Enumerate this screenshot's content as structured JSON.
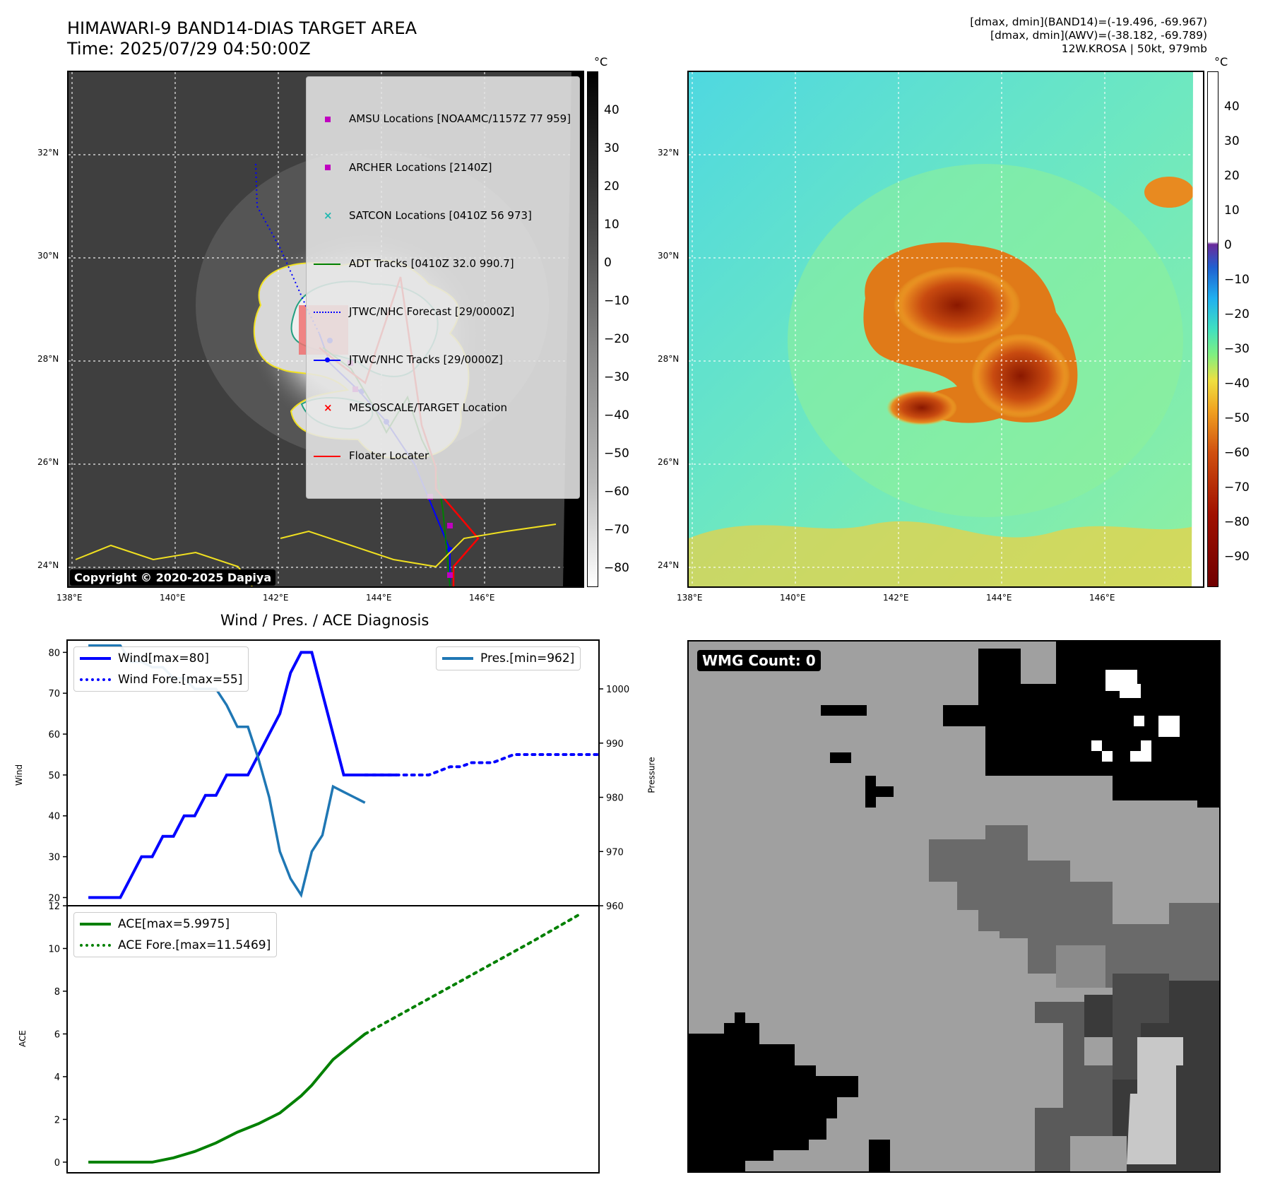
{
  "header": {
    "title_line1": "HIMAWARI-9 BAND14-DIAS TARGET AREA",
    "title_line2": "Time: 2025/07/29 04:50:00Z",
    "stats_line1": "[dmax, dmin](BAND14)=(-19.496, -69.967)",
    "stats_line2": "[dmax, dmin](AWV)=(-38.182, -69.789)",
    "stats_line3": "12W.KROSA | 50kt, 979mb"
  },
  "map": {
    "lat_labels": [
      "32°N",
      "30°N",
      "28°N",
      "26°N",
      "24°N"
    ],
    "lon_labels": [
      "138°E",
      "140°E",
      "142°E",
      "144°E",
      "146°E"
    ],
    "copyright": "Copyright © 2020-2025 Dapiya",
    "legend": [
      {
        "label": "AMSU Locations [NOAAMC/1157Z 77 959]",
        "symbol": "square",
        "color": "#c000c0"
      },
      {
        "label": "ARCHER Locations [2140Z]",
        "symbol": "square",
        "color": "#c000c0"
      },
      {
        "label": "SATCON Locations [0410Z 56 973]",
        "symbol": "x",
        "color": "#20b8b0"
      },
      {
        "label": "ADT Tracks [0410Z 32.0 990.7]",
        "symbol": "line",
        "color": "#008000"
      },
      {
        "label": "JTWC/NHC Forecast [29/0000Z]",
        "symbol": "dotted",
        "color": "#0000ff"
      },
      {
        "label": "JTWC/NHC Tracks [29/0000Z]",
        "symbol": "line-dot",
        "color": "#0000ff"
      },
      {
        "label": "MESOSCALE/TARGET Location",
        "symbol": "x",
        "color": "#ff0000"
      },
      {
        "label": "Floater Locater",
        "symbol": "line",
        "color": "#ff0000"
      }
    ]
  },
  "colorbar_gray": {
    "unit": "°C",
    "ticks": [
      "40",
      "30",
      "20",
      "10",
      "0",
      "−10",
      "−20",
      "−30",
      "−40",
      "−50",
      "−60",
      "−70",
      "−80"
    ]
  },
  "colorbar_awv": {
    "unit": "°C",
    "ticks": [
      "40",
      "30",
      "20",
      "10",
      "0",
      "−10",
      "−20",
      "−30",
      "−40",
      "−50",
      "−60",
      "−70",
      "−80",
      "−90"
    ]
  },
  "diagnosis": {
    "title": "Wind / Pres. / ACE Diagnosis",
    "wind_ylabel": "Wind",
    "pres_ylabel": "Pressure",
    "ace_ylabel": "ACE",
    "wind_legend": [
      "Wind[max=80]",
      "Wind Fore.[max=55]"
    ],
    "pres_legend": "Pres.[min=962]",
    "ace_legend": [
      "ACE[max=5.9975]",
      "ACE Fore.[max=11.5469]"
    ]
  },
  "wmg": {
    "label": "WMG Count: 0"
  },
  "chart_data": [
    {
      "type": "line",
      "title": "Wind / Pres. / ACE Diagnosis",
      "ylabel": "Wind",
      "ylim": [
        18,
        83
      ],
      "yticks": [
        20,
        30,
        40,
        50,
        60,
        70,
        80
      ],
      "series": [
        {
          "name": "Wind[max=80]",
          "color": "#0000ff",
          "style": "solid",
          "x": [
            0,
            1,
            2,
            3,
            4,
            5,
            6,
            7,
            8,
            9,
            10,
            11,
            12,
            13,
            14,
            15,
            16,
            17,
            18,
            19,
            20,
            21,
            22,
            23,
            24,
            25,
            26,
            27,
            28,
            29
          ],
          "values": [
            20,
            20,
            20,
            20,
            25,
            30,
            30,
            35,
            35,
            40,
            40,
            45,
            45,
            50,
            50,
            50,
            55,
            60,
            65,
            75,
            80,
            80,
            70,
            60,
            50,
            50,
            50,
            50,
            50,
            50
          ]
        },
        {
          "name": "Wind Fore.[max=55]",
          "color": "#0000ff",
          "style": "dotted",
          "x": [
            26,
            28,
            30,
            32,
            33,
            34,
            35,
            36,
            38,
            40,
            44,
            48
          ],
          "values": [
            50,
            50,
            50,
            50,
            51,
            52,
            52,
            53,
            53,
            55,
            55,
            55
          ]
        }
      ],
      "xlim": [
        -2,
        48
      ]
    },
    {
      "type": "line",
      "ylabel": "Pressure",
      "ylim": [
        960,
        1009
      ],
      "yticks": [
        960,
        970,
        980,
        990,
        1000
      ],
      "series": [
        {
          "name": "Pres.[min=962]",
          "color": "#1f77b4",
          "style": "solid",
          "x": [
            0,
            2,
            3,
            4,
            5,
            6,
            7,
            8,
            9,
            10,
            11,
            12,
            13,
            14,
            15,
            16,
            17,
            18,
            19,
            20,
            21,
            22,
            23,
            24,
            25,
            26
          ],
          "values": [
            1008,
            1008,
            1008,
            1005,
            1005,
            1004,
            1004,
            1002,
            1002,
            1000,
            1000,
            1000,
            997,
            993,
            993,
            987,
            980,
            970,
            965,
            962,
            970,
            973,
            982,
            981,
            980,
            979
          ]
        }
      ],
      "xlim": [
        -2,
        48
      ]
    },
    {
      "type": "line",
      "ylabel": "ACE",
      "ylim": [
        -0.5,
        12
      ],
      "yticks": [
        0,
        2,
        4,
        6,
        8,
        10,
        12
      ],
      "series": [
        {
          "name": "ACE[max=5.9975]",
          "color": "#008000",
          "style": "solid",
          "x": [
            0,
            2,
            4,
            6,
            8,
            10,
            12,
            14,
            16,
            18,
            20,
            21,
            22,
            23,
            24,
            25,
            26
          ],
          "values": [
            0,
            0,
            0,
            0,
            0.2,
            0.5,
            0.9,
            1.4,
            1.8,
            2.3,
            3.1,
            3.6,
            4.2,
            4.8,
            5.2,
            5.6,
            5.9975
          ]
        },
        {
          "name": "ACE Fore.[max=11.5469]",
          "color": "#008000",
          "style": "dotted",
          "x": [
            26,
            30,
            34,
            38,
            42,
            46
          ],
          "values": [
            5.9975,
            7.1,
            8.2,
            9.3,
            10.4,
            11.5469
          ]
        }
      ],
      "xlim": [
        -2,
        48
      ]
    }
  ]
}
